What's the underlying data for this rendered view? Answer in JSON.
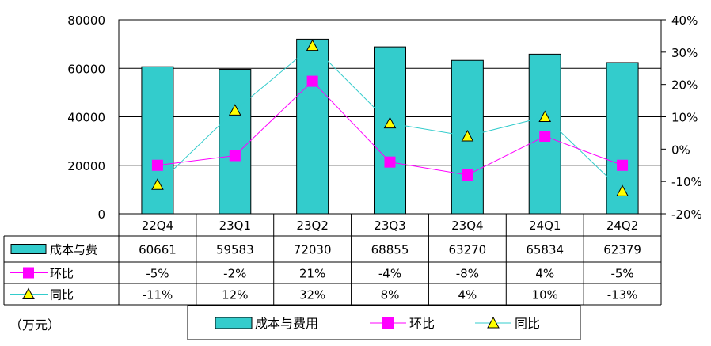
{
  "chart_data": {
    "type": "bar+line",
    "categories": [
      "22Q4",
      "23Q1",
      "23Q2",
      "23Q3",
      "23Q4",
      "24Q1",
      "24Q2"
    ],
    "series": [
      {
        "name": "成本与费用",
        "kind": "bar",
        "axis": "left",
        "values": [
          60661,
          59583,
          72030,
          68855,
          63270,
          65834,
          62379
        ],
        "labels": [
          "60661",
          "59583",
          "72030",
          "68855",
          "63270",
          "65834",
          "62379"
        ]
      },
      {
        "name": "环比",
        "kind": "line",
        "axis": "right",
        "marker": "square",
        "values": [
          -5,
          -2,
          21,
          -4,
          -8,
          4,
          -5
        ],
        "labels": [
          "-5%",
          "-2%",
          "21%",
          "-4%",
          "-8%",
          "4%",
          "-5%"
        ]
      },
      {
        "name": "同比",
        "kind": "line",
        "axis": "right",
        "marker": "triangle",
        "values": [
          -11,
          12,
          32,
          8,
          4,
          10,
          -13
        ],
        "labels": [
          "-11%",
          "12%",
          "32%",
          "8%",
          "4%",
          "10%",
          "-13%"
        ]
      }
    ],
    "table_row_labels": [
      "成本与费",
      "环比",
      "同比"
    ],
    "y_left": {
      "min": 0,
      "max": 80000,
      "ticks": [
        "0",
        "20000",
        "40000",
        "60000",
        "80000"
      ]
    },
    "y_right": {
      "min": -20,
      "max": 40,
      "ticks": [
        "-20%",
        "-10%",
        "0%",
        "10%",
        "20%",
        "30%",
        "40%"
      ]
    },
    "unit_label": "（万元）",
    "legend": [
      "成本与费用",
      "环比",
      "同比"
    ],
    "colors": {
      "bar": "#33CCCC",
      "huanbi": "#FF00FF",
      "tongbi_line": "#33CCCC",
      "tongbi_marker": "#FFFF00"
    }
  }
}
